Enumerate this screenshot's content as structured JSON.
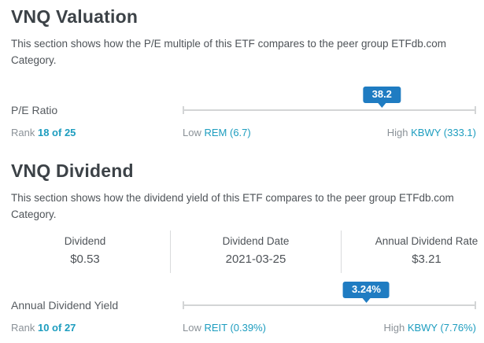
{
  "valuation": {
    "title": "VNQ Valuation",
    "description": "This section shows how the P/E multiple of this ETF compares to the peer group ETFdb.com Category.",
    "metric": {
      "label": "P/E Ratio",
      "value": "38.2",
      "position_pct": 67.9,
      "rank_label": "Rank",
      "rank": "18 of 25",
      "low_label": "Low",
      "low_link": "REM (6.7)",
      "high_label": "High",
      "high_link": "KBWY (333.1)"
    }
  },
  "dividend": {
    "title": "VNQ Dividend",
    "description": "This section shows how the dividend yield of this ETF compares to the peer group ETFdb.com Category.",
    "table": {
      "columns": [
        {
          "header": "Dividend",
          "value": "$0.53"
        },
        {
          "header": "Dividend Date",
          "value": "2021-03-25"
        },
        {
          "header": "Annual Dividend Rate",
          "value": "$3.21"
        }
      ]
    },
    "metric": {
      "label": "Annual Dividend Yield",
      "value": "3.24%",
      "position_pct": 62.6,
      "rank_label": "Rank",
      "rank": "10 of 27",
      "low_label": "Low",
      "low_link": "REIT (0.39%)",
      "high_label": "High",
      "high_link": "KBWY (7.76%)"
    }
  },
  "colors": {
    "badge_blue": "#1f7cc2",
    "link_teal": "#1d9dbf",
    "heading_text": "#3c4247",
    "body_text": "#4e5358",
    "muted_text": "#8b9298",
    "track_gray": "#d3d5d6"
  }
}
